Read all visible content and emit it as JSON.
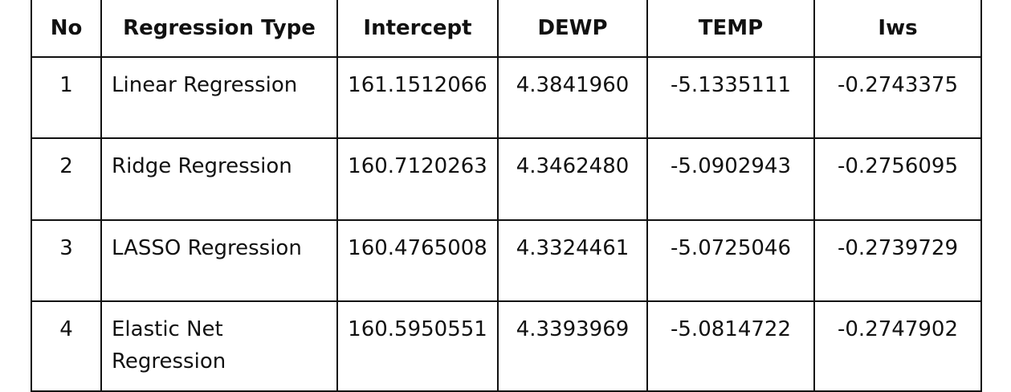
{
  "table": {
    "headers": [
      "No",
      "Regression Type",
      "Intercept",
      "DEWP",
      "TEMP",
      "Iws"
    ],
    "rows": [
      {
        "no": "1",
        "type": "Linear Regression",
        "intercept": "161.1512066",
        "dewp": "4.3841960",
        "temp": "-5.1335111",
        "iws": "-0.2743375"
      },
      {
        "no": "2",
        "type": "Ridge Regression",
        "intercept": "160.7120263",
        "dewp": "4.3462480",
        "temp": "-5.0902943",
        "iws": "-0.2756095"
      },
      {
        "no": "3",
        "type": "LASSO Regression",
        "intercept": "160.4765008",
        "dewp": "4.3324461",
        "temp": "-5.0725046",
        "iws": "-0.2739729"
      },
      {
        "no": "4",
        "type": "Elastic Net Regression",
        "intercept": "160.5950551",
        "dewp": "4.3393969",
        "temp": "-5.0814722",
        "iws": "-0.2747902"
      }
    ]
  }
}
